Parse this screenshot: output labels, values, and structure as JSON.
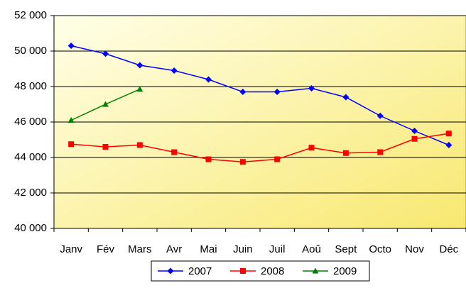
{
  "chart_data": {
    "type": "line",
    "categories": [
      "Janv",
      "Fév",
      "Mars",
      "Avr",
      "Mai",
      "Juin",
      "Juil",
      "Aoû",
      "Sept",
      "Octo",
      "Nov",
      "Déc"
    ],
    "series": [
      {
        "name": "2007",
        "color": "#0000ff",
        "marker": "diamond",
        "values": [
          50300,
          49850,
          49200,
          48900,
          48400,
          47700,
          47700,
          47900,
          47400,
          46350,
          45500,
          44700
        ]
      },
      {
        "name": "2008",
        "color": "#ff0000",
        "marker": "square",
        "values": [
          44750,
          44600,
          44700,
          44300,
          43900,
          43750,
          43900,
          44550,
          44250,
          44300,
          45050,
          45350
        ]
      },
      {
        "name": "2009",
        "color": "#008000",
        "marker": "triangle",
        "values": [
          46100,
          47000,
          47850,
          null,
          null,
          null,
          null,
          null,
          null,
          null,
          null,
          null
        ]
      }
    ],
    "ylim": [
      40000,
      52000
    ],
    "yticks": [
      {
        "value": 40000,
        "label": "40 000"
      },
      {
        "value": 42000,
        "label": "42 000"
      },
      {
        "value": 44000,
        "label": "44 000"
      },
      {
        "value": 46000,
        "label": "46 000"
      },
      {
        "value": 48000,
        "label": "48 000"
      },
      {
        "value": 50000,
        "label": "50 000"
      },
      {
        "value": 52000,
        "label": "52 000"
      }
    ],
    "grid": true,
    "legend": "bottom"
  }
}
